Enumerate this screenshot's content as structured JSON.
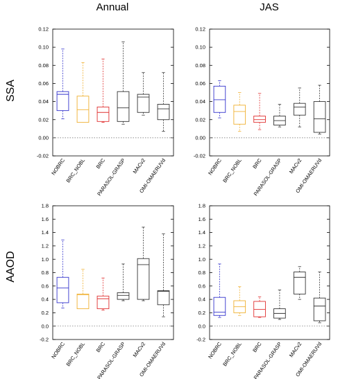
{
  "column_titles": [
    "Annual",
    "JAS"
  ],
  "row_titles": [
    "SSA",
    "AAOD"
  ],
  "colors": {
    "NOBRC": "#3333cc",
    "BRC_NOBL": "#f0b030",
    "BRC": "#e03030",
    "PARASOL-GRASP": "#333333",
    "MACv2": "#333333",
    "OMI-OMAERUVd": "#333333"
  },
  "chart_data": [
    {
      "type": "box",
      "id": "ssa-annual",
      "title": "Annual",
      "ylabel": "SSA",
      "ylim": [
        -0.02,
        0.12
      ],
      "yticks": [
        "-0.02",
        "0.00",
        "0.02",
        "0.04",
        "0.06",
        "0.08",
        "0.10",
        "0.12"
      ],
      "categories": [
        "NOBRC",
        "BRC_NOBL",
        "BRC",
        "PARASOL-GRASP",
        "MACv2",
        "OMI-OMAERUVd"
      ],
      "boxes": [
        {
          "min": 0.021,
          "q1": 0.03,
          "median": 0.048,
          "q3": 0.051,
          "max": 0.098
        },
        {
          "min": 0.017,
          "q1": 0.017,
          "median": 0.031,
          "q3": 0.046,
          "max": 0.083
        },
        {
          "min": 0.017,
          "q1": 0.018,
          "median": 0.028,
          "q3": 0.034,
          "max": 0.087
        },
        {
          "min": 0.015,
          "q1": 0.018,
          "median": 0.033,
          "q3": 0.051,
          "max": 0.106
        },
        {
          "min": 0.025,
          "q1": 0.028,
          "median": 0.045,
          "q3": 0.048,
          "max": 0.072
        },
        {
          "min": 0.007,
          "q1": 0.02,
          "median": 0.032,
          "q3": 0.037,
          "max": 0.072
        }
      ]
    },
    {
      "type": "box",
      "id": "ssa-jas",
      "title": "JAS",
      "ylabel": "",
      "ylim": [
        -0.02,
        0.12
      ],
      "yticks": [
        "-0.02",
        "0.00",
        "0.02",
        "0.04",
        "0.06",
        "0.08",
        "0.10",
        "0.12"
      ],
      "categories": [
        "NOBRC",
        "BRC_NOBL",
        "BRC",
        "PARASOL-GRASP",
        "MACv2",
        "OMI-OMAERUVd"
      ],
      "boxes": [
        {
          "min": 0.022,
          "q1": 0.028,
          "median": 0.042,
          "q3": 0.057,
          "max": 0.063
        },
        {
          "min": 0.007,
          "q1": 0.015,
          "median": 0.029,
          "q3": 0.036,
          "max": 0.05
        },
        {
          "min": 0.009,
          "q1": 0.017,
          "median": 0.02,
          "q3": 0.024,
          "max": 0.049
        },
        {
          "min": 0.012,
          "q1": 0.014,
          "median": 0.019,
          "q3": 0.024,
          "max": 0.037
        },
        {
          "min": 0.012,
          "q1": 0.025,
          "median": 0.034,
          "q3": 0.038,
          "max": 0.055
        },
        {
          "min": 0.004,
          "q1": 0.006,
          "median": 0.021,
          "q3": 0.04,
          "max": 0.058
        }
      ]
    },
    {
      "type": "box",
      "id": "aaod-annual",
      "title": "",
      "ylabel": "AAOD",
      "ylim": [
        -0.2,
        1.8
      ],
      "yticks": [
        "-0.2",
        "0.0",
        "0.2",
        "0.4",
        "0.6",
        "0.8",
        "1.0",
        "1.2",
        "1.4",
        "1.6",
        "1.8"
      ],
      "categories": [
        "NOBRC",
        "BRC_NOBL",
        "BRC",
        "PARASOL-GRASP",
        "MACv2",
        "OMI-OMAERUVd"
      ],
      "boxes": [
        {
          "min": 0.27,
          "q1": 0.35,
          "median": 0.57,
          "q3": 0.73,
          "max": 1.29
        },
        {
          "min": 0.26,
          "q1": 0.26,
          "median": 0.47,
          "q3": 0.48,
          "max": 0.85
        },
        {
          "min": 0.24,
          "q1": 0.26,
          "median": 0.41,
          "q3": 0.45,
          "max": 0.72
        },
        {
          "min": 0.38,
          "q1": 0.4,
          "median": 0.46,
          "q3": 0.5,
          "max": 0.93
        },
        {
          "min": 0.38,
          "q1": 0.4,
          "median": 0.92,
          "q3": 1.01,
          "max": 1.48
        },
        {
          "min": 0.14,
          "q1": 0.32,
          "median": 0.52,
          "q3": 0.53,
          "max": 1.38
        }
      ]
    },
    {
      "type": "box",
      "id": "aaod-jas",
      "title": "",
      "ylabel": "",
      "ylim": [
        -0.2,
        1.8
      ],
      "yticks": [
        "-0.2",
        "0.0",
        "0.2",
        "0.4",
        "0.6",
        "0.8",
        "1.0",
        "1.2",
        "1.4",
        "1.6",
        "1.8"
      ],
      "categories": [
        "NOBRC",
        "BRC_NOBL",
        "BRC",
        "PARASOL-GRASP",
        "MACv2",
        "OMI-OMAERUVd"
      ],
      "boxes": [
        {
          "min": 0.13,
          "q1": 0.16,
          "median": 0.21,
          "q3": 0.43,
          "max": 0.93
        },
        {
          "min": 0.16,
          "q1": 0.2,
          "median": 0.29,
          "q3": 0.38,
          "max": 0.59
        },
        {
          "min": 0.13,
          "q1": 0.14,
          "median": 0.25,
          "q3": 0.37,
          "max": 0.44
        },
        {
          "min": 0.1,
          "q1": 0.12,
          "median": 0.19,
          "q3": 0.26,
          "max": 0.54
        },
        {
          "min": 0.4,
          "q1": 0.48,
          "median": 0.73,
          "q3": 0.81,
          "max": 0.89
        },
        {
          "min": 0.05,
          "q1": 0.08,
          "median": 0.3,
          "q3": 0.42,
          "max": 0.81
        }
      ]
    }
  ]
}
